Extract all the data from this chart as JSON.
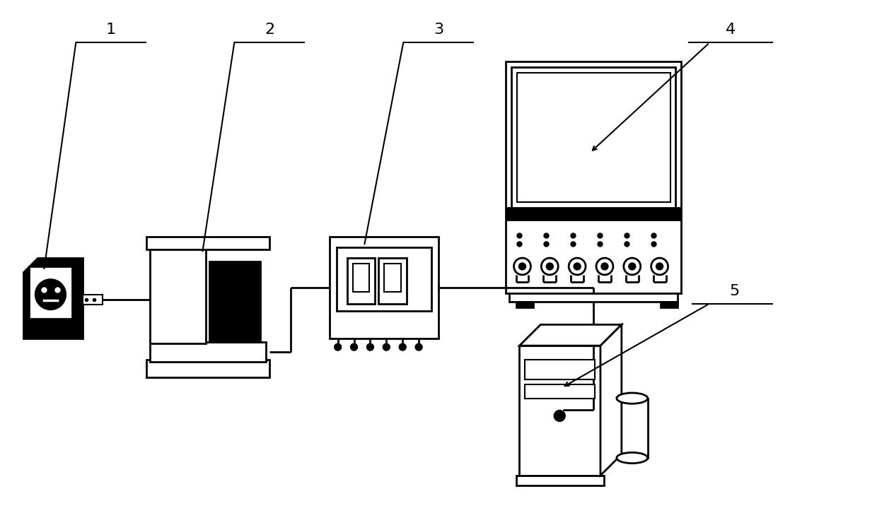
{
  "bg_color": "#ffffff",
  "line_color": "#000000",
  "lw_thick": 2.0,
  "lw_thin": 1.5,
  "label_fontsize": 16
}
